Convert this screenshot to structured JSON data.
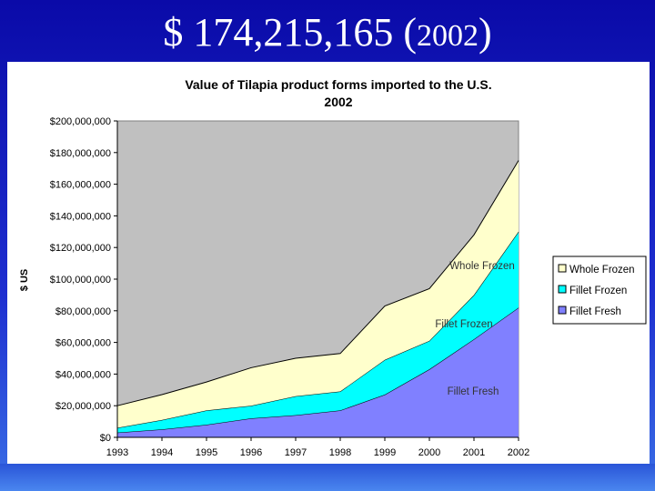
{
  "slide": {
    "title_main": "$ 174,215,165 (",
    "title_year": "2002",
    "title_close": ")"
  },
  "chart_data": {
    "type": "area",
    "stacked": true,
    "title": "Value of Tilapia product forms imported to the U.S.",
    "subtitle": "2002",
    "xlabel": "",
    "ylabel": "$ US",
    "x": [
      "1993",
      "1994",
      "1995",
      "1996",
      "1997",
      "1998",
      "1999",
      "2000",
      "2001",
      "2002"
    ],
    "ylim": [
      0,
      200000000
    ],
    "yticks": [
      0,
      20000000,
      40000000,
      60000000,
      80000000,
      100000000,
      120000000,
      140000000,
      160000000,
      180000000,
      200000000
    ],
    "ytick_labels": [
      "$0",
      "$20,000,000",
      "$40,000,000",
      "$60,000,000",
      "$80,000,000",
      "$100,000,000",
      "$120,000,000",
      "$140,000,000",
      "$160,000,000",
      "$180,000,000",
      "$200,000,000"
    ],
    "grid": false,
    "plot_background": "#c0c0c0",
    "legend_position": "right",
    "series": [
      {
        "name": "Fillet Fresh",
        "color": "#8080ff",
        "values": [
          3000000,
          5000000,
          8000000,
          12000000,
          14000000,
          17000000,
          27000000,
          43000000,
          62000000,
          82000000
        ]
      },
      {
        "name": "Fillet Frozen",
        "color": "#00ffff",
        "values": [
          3000000,
          6000000,
          9000000,
          8000000,
          12000000,
          12000000,
          22000000,
          18000000,
          28000000,
          48000000
        ]
      },
      {
        "name": "Whole Frozen",
        "color": "#ffffcc",
        "values": [
          14000000,
          16000000,
          18000000,
          24000000,
          24000000,
          24000000,
          34000000,
          33000000,
          38000000,
          45000000
        ]
      }
    ],
    "legend_order": [
      "Whole Frozen",
      "Fillet Frozen",
      "Fillet Fresh"
    ],
    "annotations": [
      "Whole Frozen",
      "Fillet Frozen",
      "Fillet Fresh"
    ]
  }
}
